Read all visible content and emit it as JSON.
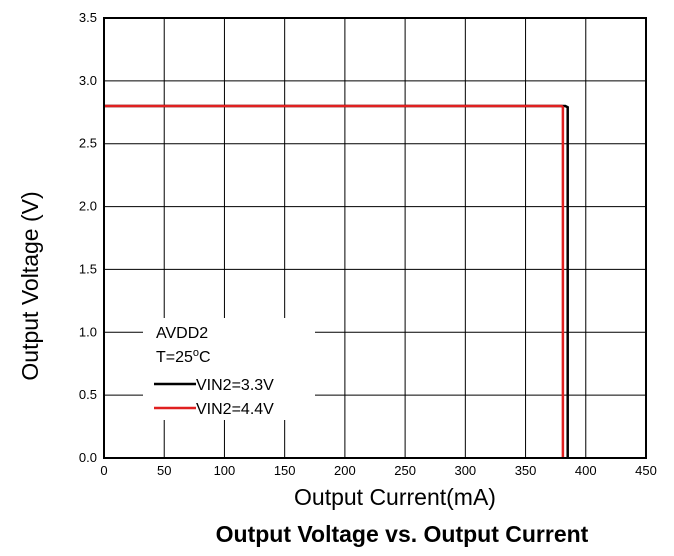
{
  "chart_data": {
    "type": "line",
    "title": "Output Voltage vs. Output Current",
    "xlabel": "Output Current(mA)",
    "ylabel": "Output Voltage (V)",
    "xlim": [
      0,
      450
    ],
    "ylim": [
      0.0,
      3.5
    ],
    "x_ticks": [
      "0",
      "50",
      "100",
      "150",
      "200",
      "250",
      "300",
      "350",
      "400",
      "450"
    ],
    "y_ticks": [
      "0.0",
      "0.5",
      "1.0",
      "1.5",
      "2.0",
      "2.5",
      "3.0",
      "3.5"
    ],
    "grid": true,
    "legend": {
      "placement": "bottom-left",
      "header_lines": [
        "AVDD2",
        "T=25",
        "o",
        "C"
      ]
    },
    "series": [
      {
        "name": "VIN2=3.3V",
        "color": "#000000",
        "x": [
          0,
          383,
          385,
          385
        ],
        "y": [
          2.8,
          2.8,
          2.79,
          0.0
        ]
      },
      {
        "name": "VIN2=4.4V",
        "color": "#e02020",
        "x": [
          0,
          380,
          381,
          381
        ],
        "y": [
          2.8,
          2.8,
          2.79,
          0.0
        ]
      }
    ]
  }
}
